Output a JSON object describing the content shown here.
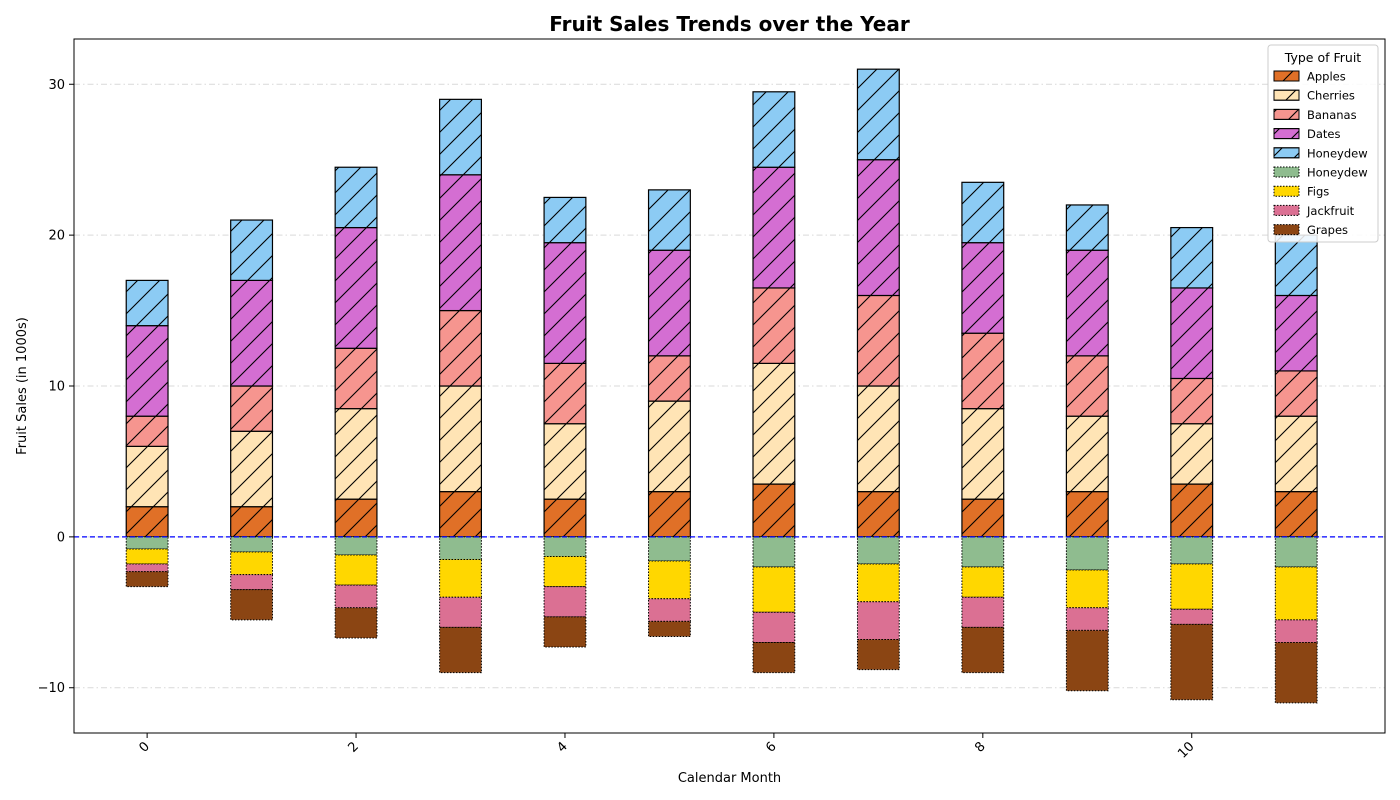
{
  "chart_data": {
    "type": "bar",
    "stacked": true,
    "title": "Fruit Sales Trends over the Year",
    "xlabel": "Calendar Month",
    "ylabel": "Fruit Sales (in 1000s)",
    "x": [
      0,
      1,
      2,
      3,
      4,
      5,
      6,
      7,
      8,
      9,
      10,
      11
    ],
    "xticks": [
      "0",
      "2",
      "4",
      "6",
      "8",
      "10"
    ],
    "yticks": [
      "−10",
      "0",
      "10",
      "20",
      "30"
    ],
    "xlim": [
      -0.7,
      11.85
    ],
    "ylim": [
      -13,
      33
    ],
    "grid": "horizontal dash-dot",
    "zero_line": {
      "value": 0,
      "color": "#0000ff",
      "style": "dashed"
    },
    "legend": {
      "title": "Type of Fruit",
      "placement": "top-right"
    },
    "series_positive": [
      {
        "name": "Apples",
        "color": "#e07027",
        "hatch": "diagonal",
        "edge": "solid",
        "values": [
          2,
          2,
          2.5,
          3,
          2.5,
          3,
          3.5,
          3,
          2.5,
          3,
          3.5,
          3
        ]
      },
      {
        "name": "Cherries",
        "color": "#ffe4b5",
        "hatch": "diagonal",
        "edge": "solid",
        "values": [
          4,
          5,
          6,
          7,
          5,
          6,
          8,
          7,
          6,
          5,
          4,
          5
        ]
      },
      {
        "name": "Bananas",
        "color": "#f6958f",
        "hatch": "diagonal",
        "edge": "solid",
        "values": [
          2,
          3,
          4,
          5,
          4,
          3,
          5,
          6,
          5,
          4,
          3,
          3
        ]
      },
      {
        "name": "Dates",
        "color": "#d46ed2",
        "hatch": "diagonal",
        "edge": "solid",
        "values": [
          6,
          7,
          8,
          9,
          8,
          7,
          8,
          9,
          6,
          7,
          6,
          5
        ]
      },
      {
        "name": "Honeydew",
        "color": "#8ccbf4",
        "hatch": "diagonal",
        "edge": "solid",
        "values": [
          3,
          4,
          4,
          5,
          3,
          4,
          5,
          6,
          4,
          3,
          4,
          4
        ]
      }
    ],
    "series_negative": [
      {
        "name": "Honeydew",
        "color": "#8fbc8f",
        "hatch": "none",
        "edge": "dotted",
        "values": [
          -0.8,
          -1,
          -1.2,
          -1.5,
          -1.3,
          -1.6,
          -2,
          -1.8,
          -2,
          -2.2,
          -1.8,
          -2
        ]
      },
      {
        "name": "Figs",
        "color": "#ffd700",
        "hatch": "none",
        "edge": "dotted",
        "values": [
          -1,
          -1.5,
          -2,
          -2.5,
          -2,
          -2.5,
          -3,
          -2.5,
          -2,
          -2.5,
          -3,
          -3.5
        ]
      },
      {
        "name": "Jackfruit",
        "color": "#db7093",
        "hatch": "none",
        "edge": "dotted",
        "values": [
          -0.5,
          -1,
          -1.5,
          -2,
          -2,
          -1.5,
          -2,
          -2.5,
          -2,
          -1.5,
          -1,
          -1.5
        ]
      },
      {
        "name": "Grapes",
        "color": "#8b4513",
        "hatch": "none",
        "edge": "dotted",
        "values": [
          -1,
          -2,
          -2,
          -3,
          -2,
          -1,
          -2,
          -2,
          -3,
          -4,
          -5,
          -4
        ]
      }
    ]
  }
}
